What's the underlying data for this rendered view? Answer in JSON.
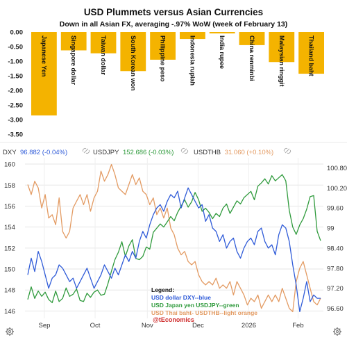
{
  "bar_panel": {
    "title": "USD Plummets versus Asian Currencies",
    "subtitle": "Down in all Asian FX, averaging -.97% WoW (week of February 13)"
  },
  "line_panel": {
    "legend_items": [
      {
        "symbol": "DXY",
        "value": "96.882 (-0.04%)"
      },
      {
        "symbol": "USDJPY",
        "value": "152.686 (-0.03%)"
      },
      {
        "symbol": "USDTHB",
        "value": "31.060 (+0.10%)"
      }
    ],
    "annotation": {
      "title": "Legend:",
      "line1": "USD dollar DXY--blue",
      "line2": "USD Japan yen USDJPY--green",
      "line3": "USD Thai baht- USDTHB--light orange"
    },
    "watermark": "@tEconomics",
    "gear_icon": "gear-icon",
    "link_icon": "link-icon"
  },
  "chart_data": [
    {
      "type": "bar",
      "title": "USD Plummets versus Asian Currencies",
      "subtitle": "Down in all Asian FX, averaging -.97% WoW (week of February 13)",
      "categories": [
        "Japanese Yen",
        "Singapore dollar",
        "Taiwan dollar",
        "South Korean won",
        "Philippine peso",
        "Indonesia rupiah",
        "India rupee",
        "China renminbi",
        "Malaysian ringgit",
        "Thailand baht"
      ],
      "values": [
        -2.86,
        -0.63,
        -0.73,
        -1.34,
        -0.95,
        -0.24,
        -0.05,
        -0.45,
        -1.03,
        -1.43
      ],
      "ylim": [
        -3.5,
        0
      ],
      "yticks": [
        "0.00",
        "-0.50",
        "-1.00",
        "-1.50",
        "-2.00",
        "-2.50",
        "-3.00",
        "-3.50"
      ],
      "color": "#f4b300",
      "grid": false
    },
    {
      "type": "line",
      "xticks": [
        "Sep",
        "Oct",
        "Nov",
        "Dec",
        "2026",
        "Feb"
      ],
      "left_axis": {
        "ticks": [
          "160",
          "158",
          "156",
          "154",
          "152",
          "150",
          "148",
          "146"
        ],
        "range": [
          145.3,
          160.6
        ]
      },
      "right_axis": {
        "ticks": [
          "100.80",
          "100.20",
          "99.60",
          "99",
          "98.40",
          "97.80",
          "97.20",
          "96.60"
        ],
        "range": [
          96.3,
          101.1
        ]
      },
      "grid": true,
      "series": [
        {
          "name": "USD dollar DXY",
          "axis": "right",
          "color": "#2f5bd8",
          "values": [
            97.6,
            98.1,
            97.7,
            98.3,
            98.0,
            97.6,
            97.2,
            97.5,
            97.6,
            97.9,
            97.8,
            97.6,
            97.4,
            97.5,
            97.2,
            97.4,
            97.6,
            97.8,
            97.5,
            97.2,
            97.4,
            97.6,
            97.9,
            97.7,
            97.5,
            97.8,
            97.6,
            97.9,
            98.2,
            98.0,
            98.3,
            98.1,
            98.6,
            98.9,
            98.7,
            99.1,
            99.4,
            99.6,
            99.7,
            99.5,
            99.8,
            100.0,
            99.9,
            100.1,
            99.6,
            99.9,
            100.2,
            100.0,
            99.8,
            99.6,
            99.7,
            99.2,
            99.4,
            99.0,
            98.9,
            98.6,
            98.8,
            98.4,
            98.6,
            98.7,
            98.3,
            98.1,
            98.4,
            98.6,
            98.7,
            98.5,
            98.9,
            99.0,
            98.6,
            98.4,
            98.5,
            98.2,
            98.8,
            99.1,
            99.0,
            98.6,
            97.9,
            97.3,
            96.5,
            96.9,
            97.4,
            96.8,
            97.0,
            96.9,
            96.9
          ]
        },
        {
          "name": "USD Japan yen USDJPY",
          "axis": "left",
          "color": "#2f9a3c",
          "values": [
            147.1,
            148.3,
            147.2,
            147.9,
            147.4,
            147.8,
            147.1,
            146.8,
            147.9,
            146.9,
            147.2,
            148.2,
            147.4,
            147.6,
            148.1,
            147.0,
            146.9,
            147.7,
            147.3,
            147.8,
            148.0,
            147.5,
            147.6,
            148.6,
            149.8,
            150.9,
            151.6,
            152.6,
            151.2,
            152.2,
            152.8,
            151.0,
            150.9,
            151.2,
            152.1,
            151.9,
            153.5,
            153.9,
            154.3,
            154.0,
            154.5,
            155.0,
            154.6,
            155.4,
            156.0,
            156.6,
            155.9,
            156.4,
            157.3,
            156.6,
            155.5,
            155.8,
            155.4,
            154.8,
            155.3,
            155.0,
            155.8,
            156.2,
            155.3,
            155.9,
            156.5,
            156.2,
            156.8,
            157.1,
            157.4,
            156.6,
            157.9,
            158.2,
            158.6,
            158.1,
            158.9,
            158.4,
            158.7,
            159.0,
            158.4,
            155.6,
            154.0,
            153.3,
            154.2,
            154.8,
            155.7,
            156.9,
            157.0,
            153.6,
            152.7
          ]
        },
        {
          "name": "USD Thai baht- USDTHB",
          "axis": "right",
          "color": "#e39b63",
          "values": [
            100.3,
            100.0,
            100.4,
            100.2,
            99.6,
            100.0,
            99.3,
            99.4,
            99.1,
            99.9,
            98.9,
            98.7,
            98.9,
            99.6,
            99.8,
            100.0,
            99.7,
            100.0,
            99.5,
            99.9,
            100.1,
            100.7,
            100.4,
            100.6,
            100.9,
            100.6,
            100.2,
            100.1,
            100.0,
            100.3,
            100.6,
            100.3,
            100.5,
            100.1,
            100.0,
            99.7,
            99.9,
            99.4,
            99.6,
            99.3,
            99.6,
            99.0,
            98.8,
            98.4,
            98.2,
            98.3,
            98.0,
            97.9,
            98.0,
            97.6,
            97.4,
            97.3,
            97.4,
            97.3,
            97.5,
            97.2,
            97.3,
            97.2,
            97.4,
            97.0,
            97.4,
            97.2,
            97.0,
            96.7,
            96.9,
            96.8,
            97.0,
            96.6,
            96.8,
            97.0,
            96.8,
            97.0,
            96.8,
            97.2,
            96.9,
            96.6,
            96.5,
            97.4,
            97.8,
            98.0,
            97.6,
            97.2,
            96.8,
            96.7,
            96.9
          ]
        }
      ]
    }
  ]
}
